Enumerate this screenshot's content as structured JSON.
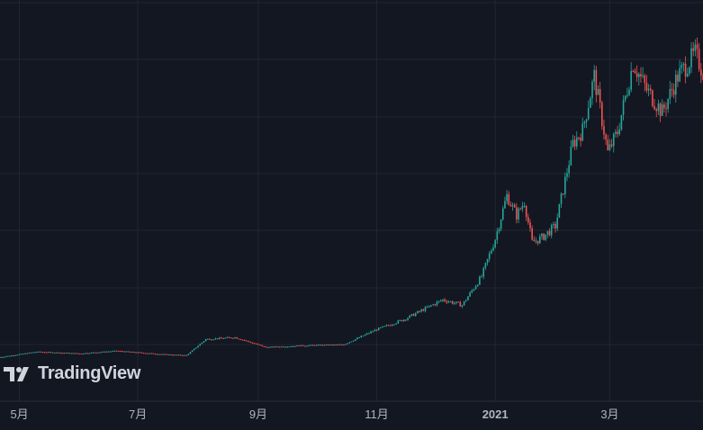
{
  "watermark": {
    "text": "TradingView",
    "icon": "tradingview-logo-icon"
  },
  "colors": {
    "background": "#131722",
    "grid": "#232632",
    "up": "#26a69a",
    "down": "#ef5350",
    "axis_text": "#b2b5be"
  },
  "chart_data": {
    "type": "candlestick",
    "title": "",
    "xlabel": "",
    "ylabel": "",
    "grid": true,
    "x_ticks": [
      "5月",
      "7月",
      "9月",
      "11月",
      "2021",
      "3月"
    ],
    "x_tick_dates": [
      "2020-05-01",
      "2020-07-01",
      "2020-09-01",
      "2020-11-01",
      "2021-01-01",
      "2021-03-01"
    ],
    "x_range": [
      "2020-04-21",
      "2021-04-18"
    ],
    "y_axis_visible": false,
    "series": [
      {
        "type": "close_path_approx",
        "points": [
          [
            "2020-04-21",
            2
          ],
          [
            "2020-05-10",
            8
          ],
          [
            "2020-06-01",
            6
          ],
          [
            "2020-06-20",
            9
          ],
          [
            "2020-07-15",
            5
          ],
          [
            "2020-07-26",
            4
          ],
          [
            "2020-08-05",
            22
          ],
          [
            "2020-08-20",
            24
          ],
          [
            "2020-09-05",
            13
          ],
          [
            "2020-09-25",
            15
          ],
          [
            "2020-10-15",
            16
          ],
          [
            "2020-10-31",
            32
          ],
          [
            "2020-11-15",
            44
          ],
          [
            "2020-12-05",
            66
          ],
          [
            "2020-12-15",
            60
          ],
          [
            "2020-12-25",
            92
          ],
          [
            "2021-01-01",
            134
          ],
          [
            "2021-01-07",
            182
          ],
          [
            "2021-01-12",
            160
          ],
          [
            "2021-01-16",
            175
          ],
          [
            "2021-01-20",
            130
          ],
          [
            "2021-01-25",
            135
          ],
          [
            "2021-02-01",
            148
          ],
          [
            "2021-02-10",
            240
          ],
          [
            "2021-02-15",
            255
          ],
          [
            "2021-02-21",
            315
          ],
          [
            "2021-02-28",
            230
          ],
          [
            "2021-03-05",
            253
          ],
          [
            "2021-03-13",
            330
          ],
          [
            "2021-03-20",
            300
          ],
          [
            "2021-03-28",
            275
          ],
          [
            "2021-04-05",
            315
          ],
          [
            "2021-04-14",
            340
          ],
          [
            "2021-04-18",
            320
          ]
        ]
      }
    ]
  }
}
